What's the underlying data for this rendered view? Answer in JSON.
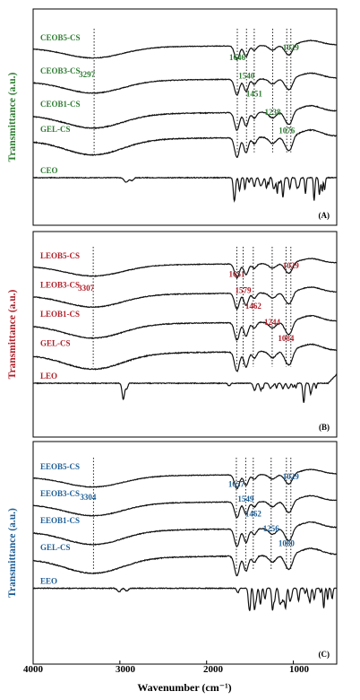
{
  "chart_data": [
    {
      "type": "line",
      "panel_label": "(A)",
      "ylabel": "Transmittance (a.u.)",
      "color": "#2e7d32",
      "series": [
        {
          "name": "CEOB5-CS",
          "shape": "film",
          "offset": 0.0
        },
        {
          "name": "CEOB3-CS",
          "shape": "film",
          "offset": 0.4
        },
        {
          "name": "CEOB1-CS",
          "shape": "film",
          "offset": 0.8
        },
        {
          "name": "GEL-CS",
          "shape": "film",
          "offset": 1.1
        },
        {
          "name": "CEO",
          "shape": "CEO",
          "offset": 1.6
        }
      ],
      "peak_annotations": [
        {
          "label": "3297",
          "x": 3297
        },
        {
          "label": "1646",
          "x": 1646
        },
        {
          "label": "1540",
          "x": 1540
        },
        {
          "label": "1451",
          "x": 1451
        },
        {
          "label": "1238",
          "x": 1238
        },
        {
          "label": "1076",
          "x": 1076
        },
        {
          "label": "1029",
          "x": 1029
        }
      ]
    },
    {
      "type": "line",
      "panel_label": "(B)",
      "ylabel": "Transmittance (a.u.)",
      "color": "#b0202a",
      "series": [
        {
          "name": "LEOB5-CS",
          "shape": "film",
          "offset": 0.0
        },
        {
          "name": "LEOB3-CS",
          "shape": "film",
          "offset": 0.4
        },
        {
          "name": "LEOB1-CS",
          "shape": "film",
          "offset": 0.8
        },
        {
          "name": "GEL-CS",
          "shape": "film",
          "offset": 1.2
        },
        {
          "name": "LEO",
          "shape": "LEO",
          "offset": 1.65
        }
      ],
      "peak_annotations": [
        {
          "label": "3307",
          "x": 3307
        },
        {
          "label": "1651",
          "x": 1651
        },
        {
          "label": "1579",
          "x": 1579
        },
        {
          "label": "1462",
          "x": 1462
        },
        {
          "label": "1244",
          "x": 1244
        },
        {
          "label": "1084",
          "x": 1084
        },
        {
          "label": "1029",
          "x": 1029
        }
      ]
    },
    {
      "type": "line",
      "panel_label": "(C)",
      "ylabel": "Transmittance (a.u.)",
      "color": "#1f5f96",
      "series": [
        {
          "name": "EEOB5-CS",
          "shape": "film",
          "offset": 0.0
        },
        {
          "name": "EEOB3-CS",
          "shape": "film",
          "offset": 0.4
        },
        {
          "name": "EEOB1-CS",
          "shape": "film",
          "offset": 0.8
        },
        {
          "name": "GEL-CS",
          "shape": "film",
          "offset": 1.2
        },
        {
          "name": "EEO",
          "shape": "EEO",
          "offset": 1.7
        }
      ],
      "peak_annotations": [
        {
          "label": "3304",
          "x": 3304
        },
        {
          "label": "1657",
          "x": 1657
        },
        {
          "label": "1549",
          "x": 1549
        },
        {
          "label": "1462",
          "x": 1462
        },
        {
          "label": "1256",
          "x": 1256
        },
        {
          "label": "1080",
          "x": 1080
        },
        {
          "label": "1029",
          "x": 1029
        }
      ]
    }
  ],
  "x_axis": {
    "xlabel": "Wavenumber (cm⁻¹)",
    "xlim": [
      4000,
      500
    ],
    "reversed": true,
    "ticks": [
      4000,
      3000,
      2000,
      1000
    ]
  }
}
